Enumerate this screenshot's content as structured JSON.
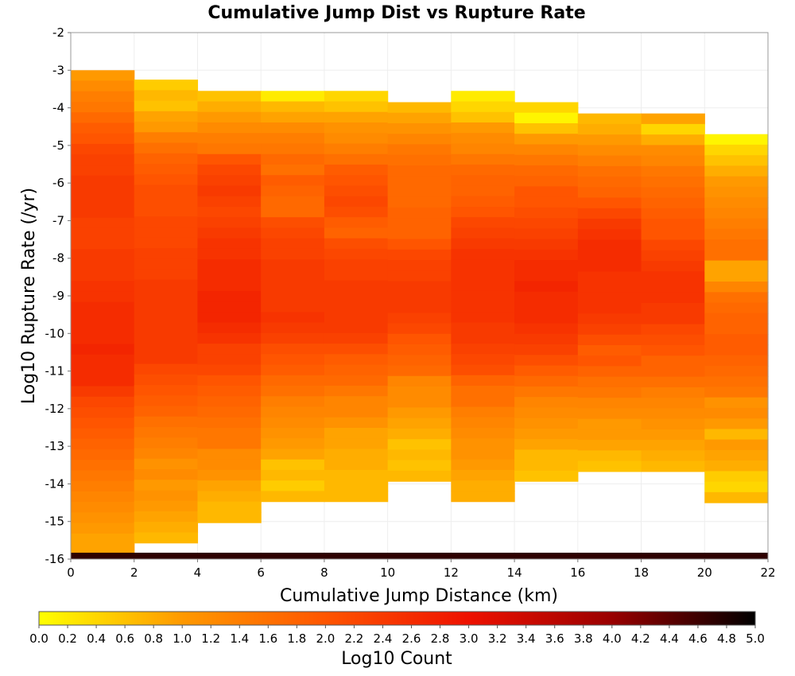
{
  "chart_data": {
    "type": "heatmap",
    "title": "Cumulative Jump Dist vs Rupture Rate",
    "xlabel": "Cumulative Jump Distance (km)",
    "ylabel": "Log10 Rupture Rate (/yr)",
    "xlim": [
      0,
      22
    ],
    "ylim": [
      -16,
      -2
    ],
    "x_ticks": [
      0,
      2,
      4,
      6,
      8,
      10,
      12,
      14,
      16,
      18,
      20,
      22
    ],
    "y_ticks": [
      -2,
      -3,
      -4,
      -5,
      -6,
      -7,
      -8,
      -9,
      -10,
      -11,
      -12,
      -13,
      -14,
      -15,
      -16
    ],
    "x_bin_width": 2,
    "y_bin_width": 0.28,
    "grid": true,
    "colorbar": {
      "label": "Log10 Count",
      "range": [
        0,
        5
      ],
      "ticks": [
        "0.0",
        "0.2",
        "0.4",
        "0.6",
        "0.8",
        "1.0",
        "1.2",
        "1.4",
        "1.6",
        "1.8",
        "2.0",
        "2.2",
        "2.4",
        "2.6",
        "2.8",
        "3.0",
        "3.2",
        "3.4",
        "3.6",
        "3.8",
        "4.0",
        "4.2",
        "4.4",
        "4.6",
        "4.8",
        "5.0"
      ],
      "colors": [
        "#ffff00",
        "#ff9900",
        "#ff5500",
        "#ee1100",
        "#990000",
        "#000000"
      ]
    },
    "columns": [
      {
        "x": 1,
        "top": -3.0,
        "values": [
          1.0,
          1.2,
          1.4,
          1.5,
          1.7,
          1.9,
          2.0,
          2.2,
          2.3,
          2.3,
          2.4,
          2.4,
          2.4,
          2.4,
          2.3,
          2.3,
          2.3,
          2.4,
          2.4,
          2.4,
          2.5,
          2.5,
          2.6,
          2.6,
          2.6,
          2.6,
          2.7,
          2.6,
          2.6,
          2.6,
          2.4,
          2.2,
          2.1,
          2.0,
          1.9,
          1.8,
          1.7,
          1.6,
          1.5,
          1.4,
          1.3,
          1.2,
          1.1,
          1.0,
          0.9,
          0.9
        ]
      },
      {
        "x": 3,
        "top": -3.25,
        "values": [
          0.5,
          0.7,
          0.6,
          0.9,
          1.0,
          1.4,
          1.6,
          1.8,
          1.9,
          2.0,
          2.1,
          2.1,
          2.1,
          2.2,
          2.2,
          2.2,
          2.3,
          2.3,
          2.3,
          2.4,
          2.4,
          2.4,
          2.4,
          2.4,
          2.4,
          2.4,
          2.4,
          2.2,
          2.1,
          2.0,
          1.9,
          1.8,
          1.6,
          1.5,
          1.4,
          1.3,
          1.1,
          1.2,
          1.0,
          1.1,
          1.0,
          0.9,
          0.8,
          0.7
        ]
      },
      {
        "x": 5,
        "top": -3.55,
        "values": [
          0.6,
          0.8,
          1.0,
          1.2,
          1.4,
          1.5,
          2.0,
          2.2,
          2.3,
          2.4,
          2.3,
          2.2,
          2.3,
          2.4,
          2.5,
          2.5,
          2.6,
          2.6,
          2.6,
          2.7,
          2.7,
          2.7,
          2.6,
          2.5,
          2.3,
          2.3,
          2.2,
          2.0,
          1.9,
          1.8,
          1.7,
          1.6,
          1.5,
          1.5,
          1.2,
          1.2,
          1.1,
          0.9,
          0.8,
          0.7,
          0.7
        ]
      },
      {
        "x": 7,
        "top": -3.55,
        "values": [
          0.2,
          0.7,
          0.9,
          1.2,
          1.4,
          1.5,
          1.7,
          1.6,
          1.9,
          1.8,
          1.7,
          1.7,
          2.1,
          2.2,
          2.3,
          2.3,
          2.4,
          2.4,
          2.4,
          2.4,
          2.4,
          2.5,
          2.4,
          2.3,
          2.1,
          2.0,
          1.9,
          1.7,
          1.6,
          1.4,
          1.3,
          1.2,
          1.1,
          1.0,
          0.9,
          0.6,
          0.7,
          0.5,
          0.7
        ]
      },
      {
        "x": 9,
        "top": -3.55,
        "values": [
          0.4,
          0.6,
          0.9,
          1.1,
          1.2,
          1.4,
          1.6,
          1.9,
          2.0,
          2.1,
          2.2,
          2.1,
          1.9,
          1.8,
          2.1,
          2.2,
          2.3,
          2.3,
          2.4,
          2.4,
          2.4,
          2.4,
          2.4,
          2.3,
          2.1,
          1.9,
          1.8,
          1.7,
          1.5,
          1.3,
          1.3,
          1.1,
          0.9,
          0.9,
          0.8,
          0.8,
          0.7,
          0.7,
          0.7
        ]
      },
      {
        "x": 11,
        "top": -3.85,
        "values": [
          0.7,
          0.9,
          1.1,
          1.3,
          1.5,
          1.6,
          1.7,
          1.7,
          1.7,
          1.7,
          1.8,
          1.8,
          1.8,
          2.0,
          2.2,
          2.3,
          2.3,
          2.4,
          2.4,
          2.4,
          2.3,
          2.2,
          2.0,
          1.9,
          1.8,
          1.7,
          1.3,
          1.2,
          1.2,
          1.0,
          0.9,
          0.8,
          0.6,
          0.7,
          0.6,
          0.7
        ]
      },
      {
        "x": 13,
        "top": -3.55,
        "values": [
          0.2,
          0.4,
          0.6,
          1.0,
          1.2,
          1.3,
          1.5,
          1.7,
          1.8,
          1.8,
          1.9,
          2.0,
          2.2,
          2.3,
          2.4,
          2.5,
          2.5,
          2.5,
          2.5,
          2.5,
          2.5,
          2.5,
          2.4,
          2.4,
          2.3,
          2.2,
          2.1,
          1.8,
          1.6,
          1.6,
          1.4,
          1.3,
          1.2,
          1.1,
          1.1,
          1.0,
          0.9,
          0.8,
          0.8
        ]
      },
      {
        "x": 15,
        "top": -3.85,
        "values": [
          0.4,
          0.1,
          0.6,
          1.0,
          1.3,
          1.5,
          1.7,
          1.8,
          2.0,
          2.0,
          2.1,
          2.2,
          2.3,
          2.4,
          2.5,
          2.6,
          2.6,
          2.7,
          2.6,
          2.6,
          2.6,
          2.5,
          2.4,
          2.3,
          2.1,
          1.9,
          1.7,
          1.5,
          1.3,
          1.2,
          1.1,
          1.0,
          0.9,
          0.7,
          0.7,
          0.6
        ]
      },
      {
        "x": 17,
        "top": -4.15,
        "values": [
          0.7,
          0.8,
          1.0,
          1.2,
          1.4,
          1.6,
          1.7,
          1.8,
          2.0,
          2.2,
          2.4,
          2.5,
          2.6,
          2.6,
          2.6,
          2.5,
          2.5,
          2.5,
          2.5,
          2.4,
          2.3,
          2.1,
          1.9,
          2.0,
          1.8,
          1.6,
          1.5,
          1.3,
          1.2,
          1.0,
          1.0,
          0.9,
          0.7,
          0.6
        ]
      },
      {
        "x": 19,
        "top": -4.15,
        "values": [
          0.9,
          0.4,
          0.8,
          1.2,
          1.3,
          1.5,
          1.6,
          1.7,
          1.8,
          1.9,
          2.0,
          2.0,
          2.2,
          2.3,
          2.4,
          2.5,
          2.5,
          2.5,
          2.4,
          2.4,
          2.2,
          2.1,
          2.0,
          1.8,
          1.8,
          1.6,
          1.4,
          1.3,
          1.2,
          1.1,
          1.0,
          0.9,
          0.8,
          0.7
        ]
      },
      {
        "x": 21,
        "top": -4.7,
        "values": [
          0.1,
          0.4,
          0.6,
          0.8,
          1.0,
          1.1,
          1.2,
          1.3,
          1.4,
          1.5,
          1.6,
          1.6,
          0.9,
          0.9,
          1.3,
          1.6,
          1.7,
          1.8,
          1.8,
          1.9,
          1.9,
          1.8,
          1.7,
          1.6,
          1.5,
          1.1,
          1.2,
          1.0,
          0.7,
          1.0,
          0.9,
          0.8,
          0.5,
          0.4,
          0.7
        ]
      }
    ],
    "bottom_row": {
      "y_bottom": -16,
      "height": 0.17,
      "value": 4.7
    }
  }
}
